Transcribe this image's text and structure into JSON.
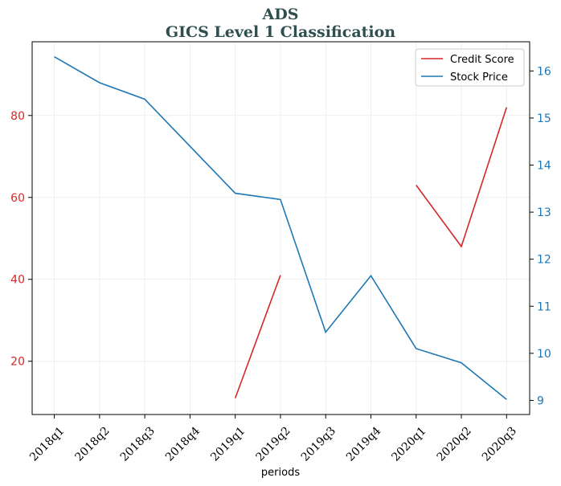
{
  "chart_data": {
    "type": "line",
    "title": "ADS",
    "subtitle": "GICS Level 1 Classification",
    "xlabel": "periods",
    "categories": [
      "2018q1",
      "2018q2",
      "2018q3",
      "2018q4",
      "2019q1",
      "2019q2",
      "2019q3",
      "2019q4",
      "2020q1",
      "2020q2",
      "2020q3"
    ],
    "left_axis": {
      "ylim": [
        7,
        98
      ],
      "ticks": [
        20,
        40,
        60,
        80
      ],
      "color": "#d62728"
    },
    "right_axis": {
      "ylim": [
        8.7,
        16.62
      ],
      "ticks": [
        9,
        10,
        11,
        12,
        13,
        14,
        15,
        16
      ],
      "color": "#1f77b4"
    },
    "series": [
      {
        "name": "Credit Score",
        "axis": "left",
        "color": "#d62728",
        "values": [
          null,
          null,
          null,
          null,
          11,
          41,
          null,
          null,
          63,
          48,
          82
        ]
      },
      {
        "name": "Stock Price",
        "axis": "right",
        "color": "#1f77b4",
        "values": [
          16.3,
          15.75,
          15.4,
          14.4,
          13.4,
          13.27,
          10.45,
          11.65,
          10.1,
          9.8,
          9.02
        ]
      }
    ],
    "grid": true,
    "legend": "top-right"
  }
}
